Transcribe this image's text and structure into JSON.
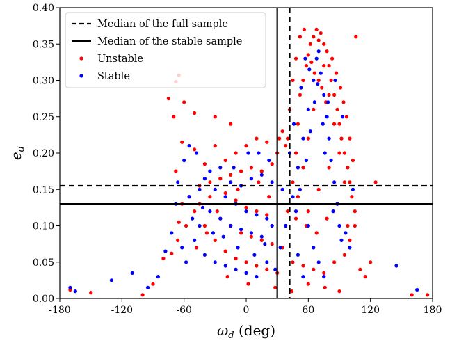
{
  "chart_data": {
    "type": "scatter",
    "xlabel_symbol": "ω",
    "xlabel_sub": "d",
    "xlabel_unit": " (deg)",
    "ylabel_symbol": "e",
    "ylabel_sub": "d",
    "xlim": [
      -180,
      180
    ],
    "ylim": [
      0.0,
      0.4
    ],
    "xticks": [
      -180,
      -120,
      -60,
      0,
      60,
      120,
      180
    ],
    "xtick_labels": [
      "-180",
      "-120",
      "-60",
      "0",
      "60",
      "120",
      "180"
    ],
    "yticks": [
      0.0,
      0.05,
      0.1,
      0.15,
      0.2,
      0.25,
      0.3,
      0.35,
      0.4
    ],
    "ytick_labels": [
      "0.00",
      "0.05",
      "0.10",
      "0.15",
      "0.20",
      "0.25",
      "0.30",
      "0.35",
      "0.40"
    ],
    "legend_position": "top-left",
    "legend": [
      {
        "label": "Median of the full sample",
        "style": "dashed-line",
        "color": "#000000"
      },
      {
        "label": "Median of the stable sample",
        "style": "solid-line",
        "color": "#000000"
      },
      {
        "label": "Unstable",
        "style": "dot",
        "color": "#ff0000"
      },
      {
        "label": "Stable",
        "style": "dot",
        "color": "#0000ff"
      }
    ],
    "reference_lines": [
      {
        "name": "Median of the full sample",
        "orientation": "vertical",
        "x": 42,
        "style": "dashed"
      },
      {
        "name": "Median of the full sample",
        "orientation": "horizontal",
        "y": 0.155,
        "style": "dashed"
      },
      {
        "name": "Median of the stable sample",
        "orientation": "vertical",
        "x": 30,
        "style": "solid"
      },
      {
        "name": "Median of the stable sample",
        "orientation": "horizontal",
        "y": 0.13,
        "style": "solid"
      }
    ],
    "series": [
      {
        "name": "Unstable",
        "color": "#ff0000",
        "points": [
          [
            -170,
            0.012
          ],
          [
            -150,
            0.008
          ],
          [
            -100,
            0.005
          ],
          [
            -90,
            0.02
          ],
          [
            -80,
            0.055
          ],
          [
            -72,
            0.062
          ],
          [
            -65,
            0.105
          ],
          [
            -68,
            0.175
          ],
          [
            -62,
            0.215
          ],
          [
            -70,
            0.25
          ],
          [
            -60,
            0.27
          ],
          [
            -50,
            0.255
          ],
          [
            -30,
            0.25
          ],
          [
            -15,
            0.24
          ],
          [
            -75,
            0.275
          ],
          [
            -68,
            0.298
          ],
          [
            -65,
            0.307
          ],
          [
            -50,
            0.205
          ],
          [
            -40,
            0.185
          ],
          [
            -30,
            0.21
          ],
          [
            -20,
            0.19
          ],
          [
            -10,
            0.2
          ],
          [
            0,
            0.21
          ],
          [
            10,
            0.22
          ],
          [
            20,
            0.215
          ],
          [
            25,
            0.185
          ],
          [
            15,
            0.175
          ],
          [
            5,
            0.18
          ],
          [
            -5,
            0.175
          ],
          [
            -15,
            0.17
          ],
          [
            -25,
            0.165
          ],
          [
            -35,
            0.16
          ],
          [
            -45,
            0.155
          ],
          [
            -55,
            0.14
          ],
          [
            -50,
            0.12
          ],
          [
            -40,
            0.1
          ],
          [
            -30,
            0.08
          ],
          [
            -20,
            0.065
          ],
          [
            -10,
            0.055
          ],
          [
            0,
            0.05
          ],
          [
            10,
            0.045
          ],
          [
            20,
            0.04
          ],
          [
            30,
            0.035
          ],
          [
            -25,
            0.11
          ],
          [
            -15,
            0.1
          ],
          [
            -5,
            0.09
          ],
          [
            5,
            0.085
          ],
          [
            15,
            0.08
          ],
          [
            25,
            0.075
          ],
          [
            35,
            0.07
          ],
          [
            -45,
            0.13
          ],
          [
            -35,
            0.14
          ],
          [
            -20,
            0.145
          ],
          [
            -10,
            0.135
          ],
          [
            0,
            0.125
          ],
          [
            10,
            0.12
          ],
          [
            20,
            0.115
          ],
          [
            45,
            0.05
          ],
          [
            55,
            0.045
          ],
          [
            65,
            0.04
          ],
          [
            75,
            0.035
          ],
          [
            85,
            0.05
          ],
          [
            95,
            0.06
          ],
          [
            100,
            0.08
          ],
          [
            105,
            0.1
          ],
          [
            110,
            0.04
          ],
          [
            115,
            0.03
          ],
          [
            120,
            0.05
          ],
          [
            125,
            0.16
          ],
          [
            160,
            0.005
          ],
          [
            175,
            0.005
          ],
          [
            40,
            0.12
          ],
          [
            45,
            0.16
          ],
          [
            48,
            0.2
          ],
          [
            50,
            0.24
          ],
          [
            52,
            0.28
          ],
          [
            55,
            0.3
          ],
          [
            58,
            0.32
          ],
          [
            60,
            0.335
          ],
          [
            62,
            0.35
          ],
          [
            65,
            0.36
          ],
          [
            68,
            0.37
          ],
          [
            70,
            0.355
          ],
          [
            72,
            0.365
          ],
          [
            75,
            0.35
          ],
          [
            78,
            0.34
          ],
          [
            80,
            0.32
          ],
          [
            82,
            0.3
          ],
          [
            85,
            0.28
          ],
          [
            88,
            0.26
          ],
          [
            90,
            0.24
          ],
          [
            92,
            0.22
          ],
          [
            95,
            0.2
          ],
          [
            98,
            0.18
          ],
          [
            100,
            0.16
          ],
          [
            102,
            0.14
          ],
          [
            105,
            0.12
          ],
          [
            50,
            0.14
          ],
          [
            55,
            0.18
          ],
          [
            60,
            0.22
          ],
          [
            65,
            0.26
          ],
          [
            70,
            0.3
          ],
          [
            75,
            0.32
          ],
          [
            80,
            0.28
          ],
          [
            85,
            0.24
          ],
          [
            90,
            0.2
          ],
          [
            95,
            0.16
          ],
          [
            60,
            0.12
          ],
          [
            70,
            0.15
          ],
          [
            80,
            0.18
          ],
          [
            48,
            0.11
          ],
          [
            58,
            0.1
          ],
          [
            68,
            0.09
          ],
          [
            78,
            0.11
          ],
          [
            88,
            0.13
          ],
          [
            98,
            0.1
          ],
          [
            40,
            0.22
          ],
          [
            42,
            0.26
          ],
          [
            45,
            0.3
          ],
          [
            48,
            0.33
          ],
          [
            52,
            0.36
          ],
          [
            56,
            0.37
          ],
          [
            63,
            0.325
          ],
          [
            66,
            0.31
          ],
          [
            73,
            0.29
          ],
          [
            77,
            0.27
          ],
          [
            83,
            0.33
          ],
          [
            87,
            0.31
          ],
          [
            91,
            0.29
          ],
          [
            94,
            0.27
          ],
          [
            97,
            0.25
          ],
          [
            100,
            0.22
          ],
          [
            103,
            0.19
          ],
          [
            106,
            0.36
          ],
          [
            30,
            0.2
          ],
          [
            32,
            0.22
          ],
          [
            35,
            0.23
          ],
          [
            38,
            0.21
          ],
          [
            -8,
            0.15
          ],
          [
            12,
            0.16
          ],
          [
            22,
            0.14
          ],
          [
            -28,
            0.12
          ],
          [
            -38,
            0.09
          ],
          [
            -48,
            0.07
          ],
          [
            -58,
            0.1
          ],
          [
            -62,
            0.13
          ],
          [
            -66,
            0.08
          ],
          [
            -18,
            0.03
          ],
          [
            2,
            0.02
          ],
          [
            28,
            0.015
          ],
          [
            44,
            0.01
          ],
          [
            60,
            0.02
          ],
          [
            76,
            0.015
          ],
          [
            90,
            0.01
          ]
        ]
      },
      {
        "name": "Stable",
        "color": "#0000ff",
        "points": [
          [
            -170,
            0.015
          ],
          [
            -165,
            0.01
          ],
          [
            -130,
            0.025
          ],
          [
            -110,
            0.035
          ],
          [
            -95,
            0.015
          ],
          [
            -85,
            0.03
          ],
          [
            -78,
            0.065
          ],
          [
            -72,
            0.09
          ],
          [
            -68,
            0.13
          ],
          [
            -66,
            0.16
          ],
          [
            -60,
            0.19
          ],
          [
            -55,
            0.21
          ],
          [
            -48,
            0.2
          ],
          [
            -40,
            0.165
          ],
          [
            -30,
            0.15
          ],
          [
            -20,
            0.14
          ],
          [
            -10,
            0.13
          ],
          [
            0,
            0.12
          ],
          [
            10,
            0.115
          ],
          [
            20,
            0.11
          ],
          [
            25,
            0.1
          ],
          [
            -35,
            0.12
          ],
          [
            -25,
            0.11
          ],
          [
            -15,
            0.1
          ],
          [
            -5,
            0.095
          ],
          [
            5,
            0.09
          ],
          [
            15,
            0.085
          ],
          [
            -45,
            0.1
          ],
          [
            -50,
            0.08
          ],
          [
            -40,
            0.06
          ],
          [
            -30,
            0.05
          ],
          [
            -20,
            0.045
          ],
          [
            -10,
            0.04
          ],
          [
            0,
            0.035
          ],
          [
            10,
            0.03
          ],
          [
            20,
            0.05
          ],
          [
            -55,
            0.14
          ],
          [
            -45,
            0.15
          ],
          [
            -35,
            0.175
          ],
          [
            -25,
            0.18
          ],
          [
            -15,
            0.16
          ],
          [
            -5,
            0.155
          ],
          [
            5,
            0.165
          ],
          [
            15,
            0.17
          ],
          [
            25,
            0.16
          ],
          [
            35,
            0.15
          ],
          [
            38,
            0.1
          ],
          [
            33,
            0.07
          ],
          [
            28,
            0.04
          ],
          [
            45,
            0.14
          ],
          [
            50,
            0.18
          ],
          [
            55,
            0.22
          ],
          [
            60,
            0.26
          ],
          [
            65,
            0.3
          ],
          [
            68,
            0.33
          ],
          [
            70,
            0.34
          ],
          [
            72,
            0.31
          ],
          [
            75,
            0.28
          ],
          [
            78,
            0.25
          ],
          [
            80,
            0.22
          ],
          [
            82,
            0.19
          ],
          [
            85,
            0.16
          ],
          [
            88,
            0.13
          ],
          [
            90,
            0.1
          ],
          [
            92,
            0.08
          ],
          [
            60,
            0.1
          ],
          [
            65,
            0.07
          ],
          [
            70,
            0.05
          ],
          [
            75,
            0.03
          ],
          [
            50,
            0.06
          ],
          [
            55,
            0.03
          ],
          [
            48,
            0.12
          ],
          [
            52,
            0.15
          ],
          [
            58,
            0.19
          ],
          [
            62,
            0.23
          ],
          [
            66,
            0.27
          ],
          [
            74,
            0.24
          ],
          [
            76,
            0.2
          ],
          [
            84,
            0.12
          ],
          [
            96,
            0.09
          ],
          [
            100,
            0.07
          ],
          [
            103,
            0.15
          ],
          [
            145,
            0.045
          ],
          [
            165,
            0.012
          ],
          [
            42,
            0.2
          ],
          [
            46,
            0.24
          ],
          [
            53,
            0.29
          ],
          [
            57,
            0.33
          ],
          [
            61,
            0.315
          ],
          [
            69,
            0.295
          ],
          [
            79,
            0.27
          ],
          [
            86,
            0.3
          ],
          [
            93,
            0.25
          ],
          [
            -8,
            0.07
          ],
          [
            8,
            0.06
          ],
          [
            18,
            0.075
          ],
          [
            -22,
            0.085
          ],
          [
            -32,
            0.09
          ],
          [
            -42,
            0.125
          ],
          [
            -52,
            0.11
          ],
          [
            -62,
            0.07
          ],
          [
            -58,
            0.05
          ],
          [
            -12,
            0.18
          ],
          [
            2,
            0.2
          ],
          [
            12,
            0.2
          ],
          [
            22,
            0.19
          ]
        ]
      }
    ]
  }
}
